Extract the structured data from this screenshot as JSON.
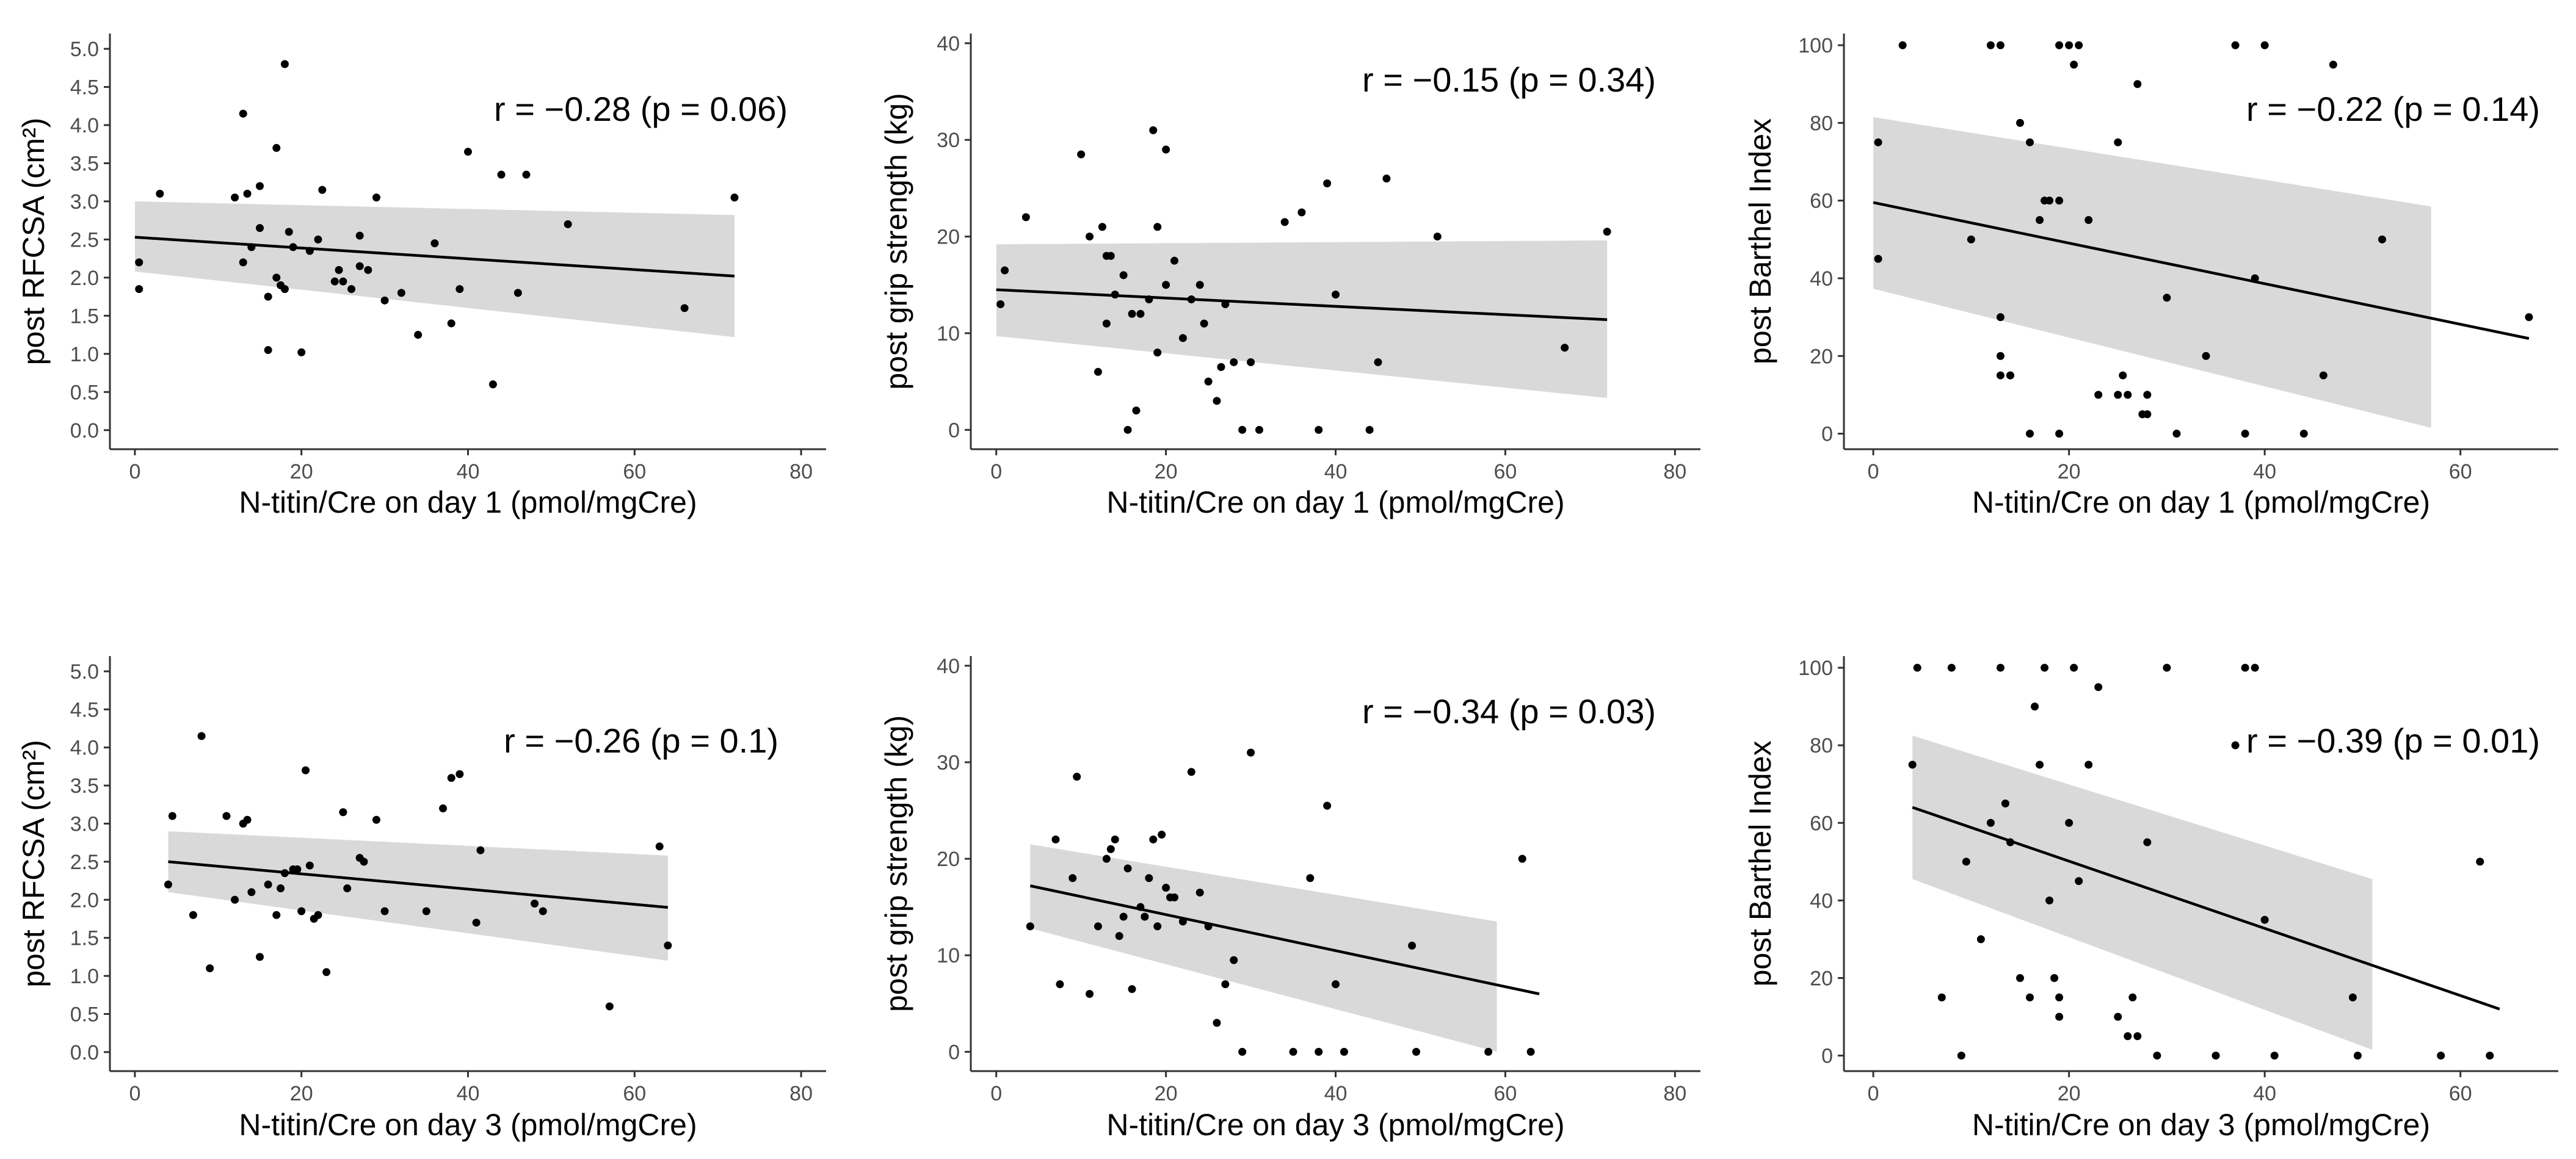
{
  "chart_data": [
    {
      "type": "scatter",
      "xlabel": "N-titin/Cre on day 1 (pmol/mgCre)",
      "ylabel": "post RFCSA (cm²)",
      "annotation": "r = −0.28 (p = 0.06)",
      "xlim": [
        -3,
        83
      ],
      "ylim": [
        -0.25,
        5.2
      ],
      "xticks": [
        0,
        20,
        40,
        60,
        80
      ],
      "yticks": [
        0,
        0.5,
        1,
        1.5,
        2,
        2.5,
        3,
        3.5,
        4,
        4.5,
        5
      ],
      "ytick_labels": [
        "0.0",
        "0.5",
        "1.0",
        "1.5",
        "2.0",
        "2.5",
        "3.0",
        "3.5",
        "4.0",
        "4.5",
        "5.0"
      ],
      "fit": {
        "x": [
          0,
          72
        ],
        "y": [
          2.53,
          2.02
        ]
      },
      "ci": {
        "x": [
          0,
          72
        ],
        "upper": [
          3.0,
          2.82
        ],
        "lower": [
          2.08,
          1.22
        ]
      },
      "x": [
        0.5,
        0.5,
        3,
        12,
        13,
        13,
        13.5,
        14,
        15,
        15,
        16,
        16,
        17,
        17,
        17.5,
        18,
        18,
        18.5,
        19,
        20,
        21,
        22,
        22.5,
        24,
        24.5,
        25,
        26,
        27,
        27,
        28,
        29,
        30,
        32,
        34,
        36,
        38,
        39,
        40,
        43,
        44,
        46,
        47,
        52,
        66,
        72
      ],
      "y": [
        2.2,
        1.85,
        3.1,
        3.05,
        4.15,
        2.2,
        3.1,
        2.4,
        3.2,
        2.65,
        1.75,
        1.05,
        3.7,
        2.0,
        1.9,
        4.8,
        1.85,
        2.6,
        2.4,
        1.02,
        2.35,
        2.5,
        3.15,
        1.95,
        2.1,
        1.95,
        1.85,
        2.55,
        2.15,
        2.1,
        3.05,
        1.7,
        1.8,
        1.25,
        2.45,
        1.4,
        1.85,
        3.65,
        0.6,
        3.35,
        1.8,
        3.35,
        2.7,
        1.6,
        3.05
      ]
    },
    {
      "type": "scatter",
      "xlabel": "N-titin/Cre on day 1 (pmol/mgCre)",
      "ylabel": "post grip strength (kg)",
      "annotation": "r = −0.15 (p = 0.34)",
      "xlim": [
        -3,
        83
      ],
      "ylim": [
        -2,
        41
      ],
      "xticks": [
        0,
        20,
        40,
        60,
        80
      ],
      "yticks": [
        0,
        10,
        20,
        30,
        40
      ],
      "ytick_labels": [
        "0",
        "10",
        "20",
        "30",
        "40"
      ],
      "fit": {
        "x": [
          0,
          72
        ],
        "y": [
          14.5,
          11.4
        ]
      },
      "ci": {
        "x": [
          0,
          72
        ],
        "upper": [
          19.2,
          19.6
        ],
        "lower": [
          9.7,
          3.3
        ]
      },
      "x": [
        0.5,
        1,
        3.5,
        10,
        11,
        12,
        12.5,
        13,
        13,
        13.5,
        14,
        15,
        15.5,
        16,
        16.5,
        17,
        18,
        18.5,
        19,
        19,
        20,
        20,
        21,
        22,
        23,
        24,
        24.5,
        25,
        26,
        26.5,
        27,
        28,
        29,
        30,
        31,
        34,
        36,
        38,
        39,
        40,
        44,
        45,
        46,
        52,
        67,
        72
      ],
      "y": [
        13,
        16.5,
        22,
        28.5,
        20,
        6,
        21,
        18,
        11,
        18,
        14,
        16,
        0,
        12,
        2,
        12,
        13.5,
        31,
        21,
        8,
        15,
        29,
        17.5,
        9.5,
        13.5,
        15,
        11,
        5,
        3,
        6.5,
        13,
        7,
        0,
        7,
        0,
        21.5,
        22.5,
        0,
        25.5,
        14,
        0,
        7,
        26,
        20,
        8.5,
        20.5
      ]
    },
    {
      "type": "scatter",
      "xlabel": "N-titin/Cre on day 1 (pmol/mgCre)",
      "ylabel": "post Barthel Index",
      "annotation": "r = −0.22 (p = 0.14)",
      "xlim": [
        -3,
        70
      ],
      "ylim": [
        -4,
        103
      ],
      "xticks": [
        0,
        20,
        40,
        60
      ],
      "yticks": [
        0,
        20,
        40,
        60,
        80,
        100
      ],
      "ytick_labels": [
        "0",
        "20",
        "40",
        "60",
        "80",
        "100"
      ],
      "fit": {
        "x": [
          0,
          67
        ],
        "y": [
          59.5,
          24.5
        ]
      },
      "ci": {
        "x": [
          0,
          57
        ],
        "upper": [
          81.5,
          58.5
        ],
        "lower": [
          37.3,
          1.5
        ]
      },
      "x": [
        0.5,
        0.5,
        3,
        10,
        12,
        13,
        13,
        13,
        13,
        14,
        14,
        15,
        16,
        16,
        17,
        17.5,
        18,
        19,
        19,
        19,
        20,
        20.5,
        21,
        22,
        23,
        25,
        25,
        25.5,
        26,
        27,
        27.5,
        28,
        28,
        30,
        31,
        34,
        37,
        38,
        39,
        40,
        44,
        46,
        47,
        52,
        67
      ],
      "y": [
        75,
        45,
        100,
        50,
        100,
        100,
        30,
        20,
        15,
        15,
        15,
        80,
        75,
        0,
        55,
        60,
        60,
        100,
        60,
        0,
        100,
        95,
        100,
        55,
        10,
        75,
        10,
        15,
        10,
        90,
        5,
        10,
        5,
        35,
        0,
        20,
        100,
        0,
        40,
        100,
        0,
        15,
        95,
        50,
        30
      ]
    },
    {
      "type": "scatter",
      "xlabel": "N-titin/Cre on day 3 (pmol/mgCre)",
      "ylabel": "post RFCSA (cm²)",
      "annotation": "r = −0.26 (p = 0.1)",
      "xlim": [
        -3,
        83
      ],
      "ylim": [
        -0.25,
        5.2
      ],
      "xticks": [
        0,
        20,
        40,
        60,
        80
      ],
      "yticks": [
        0,
        0.5,
        1,
        1.5,
        2,
        2.5,
        3,
        3.5,
        4,
        4.5,
        5
      ],
      "ytick_labels": [
        "0.0",
        "0.5",
        "1.0",
        "1.5",
        "2.0",
        "2.5",
        "3.0",
        "3.5",
        "4.0",
        "4.5",
        "5.0"
      ],
      "fit": {
        "x": [
          4,
          64
        ],
        "y": [
          2.5,
          1.9
        ]
      },
      "ci": {
        "x": [
          4,
          64
        ],
        "upper": [
          2.9,
          2.58
        ],
        "lower": [
          2.1,
          1.2
        ]
      },
      "x": [
        4,
        4.5,
        7,
        8,
        9,
        11,
        12,
        13,
        13.5,
        14,
        15,
        16,
        17,
        17.5,
        18,
        19,
        19.5,
        20,
        20.5,
        21,
        21.5,
        22,
        23,
        25,
        25.5,
        27,
        27.5,
        29,
        30,
        35,
        37,
        38,
        39,
        41,
        41.5,
        48,
        49,
        57,
        63,
        64
      ],
      "y": [
        2.2,
        3.1,
        1.8,
        4.15,
        1.1,
        3.1,
        2.0,
        3.0,
        3.05,
        2.1,
        1.25,
        2.2,
        1.8,
        2.15,
        2.35,
        2.4,
        2.4,
        1.85,
        3.7,
        2.45,
        1.75,
        1.8,
        1.05,
        3.15,
        2.15,
        2.55,
        2.5,
        3.05,
        1.85,
        1.85,
        3.2,
        3.6,
        3.65,
        1.7,
        2.65,
        1.95,
        1.85,
        0.6,
        2.7,
        1.4
      ]
    },
    {
      "type": "scatter",
      "xlabel": "N-titin/Cre on day 3 (pmol/mgCre)",
      "ylabel": "post grip strength (kg)",
      "annotation": "r = −0.34 (p = 0.03)",
      "xlim": [
        -3,
        83
      ],
      "ylim": [
        -2,
        41
      ],
      "xticks": [
        0,
        20,
        40,
        60,
        80
      ],
      "yticks": [
        0,
        10,
        20,
        30,
        40
      ],
      "ytick_labels": [
        "0",
        "10",
        "20",
        "30",
        "40"
      ],
      "fit": {
        "x": [
          4,
          64
        ],
        "y": [
          17.2,
          6.0
        ]
      },
      "ci": {
        "x": [
          4,
          59
        ],
        "upper": [
          21.5,
          13.5
        ],
        "lower": [
          12.8,
          0
        ]
      },
      "x": [
        4,
        7,
        7.5,
        9,
        9.5,
        11,
        12,
        13,
        13.5,
        14,
        14.5,
        15,
        15.5,
        16,
        17,
        17.5,
        18,
        18.5,
        19,
        19.5,
        20,
        20.5,
        21,
        22,
        23,
        24,
        25,
        26,
        27,
        28,
        29,
        30,
        35,
        37,
        38,
        39,
        40,
        41,
        49,
        49.5,
        58,
        62,
        63
      ],
      "y": [
        13,
        22,
        7,
        18,
        28.5,
        6,
        13,
        20,
        21,
        22,
        12,
        14,
        19,
        6.5,
        15,
        14,
        18,
        22,
        13,
        22.5,
        17,
        16,
        16,
        13.5,
        29,
        16.5,
        13,
        3,
        7,
        9.5,
        0,
        31,
        0,
        18,
        0,
        25.5,
        7,
        0,
        11,
        0,
        0,
        20,
        0
      ]
    },
    {
      "type": "scatter",
      "xlabel": "N-titin/Cre on day 3 (pmol/mgCre)",
      "ylabel": "post Barthel Index",
      "annotation": "r = −0.39 (p = 0.01)",
      "xlim": [
        -3,
        70
      ],
      "ylim": [
        -4,
        103
      ],
      "xticks": [
        0,
        20,
        40,
        60
      ],
      "yticks": [
        0,
        20,
        40,
        60,
        80,
        100
      ],
      "ytick_labels": [
        "0",
        "20",
        "40",
        "60",
        "80",
        "100"
      ],
      "fit": {
        "x": [
          4,
          64
        ],
        "y": [
          64,
          12
        ]
      },
      "ci": {
        "x": [
          4,
          51
        ],
        "upper": [
          82.5,
          45.5
        ],
        "lower": [
          45.5,
          1.5
        ]
      },
      "x": [
        4,
        4.5,
        7,
        8,
        9,
        9.5,
        11,
        12,
        13,
        13.5,
        14,
        15,
        16,
        16.5,
        17,
        17.5,
        18,
        18.5,
        19,
        19,
        20,
        20.5,
        21,
        22,
        23,
        25,
        26,
        26.5,
        27,
        28,
        29,
        30,
        35,
        37,
        38,
        39,
        40,
        41,
        49,
        49.5,
        58,
        62,
        63
      ],
      "y": [
        75,
        100,
        15,
        100,
        0,
        50,
        30,
        60,
        100,
        65,
        55,
        20,
        15,
        90,
        75,
        100,
        40,
        20,
        15,
        10,
        60,
        100,
        45,
        75,
        95,
        10,
        5,
        15,
        5,
        55,
        0,
        100,
        0,
        80,
        100,
        100,
        35,
        0,
        15,
        0,
        0,
        50,
        0
      ]
    }
  ]
}
